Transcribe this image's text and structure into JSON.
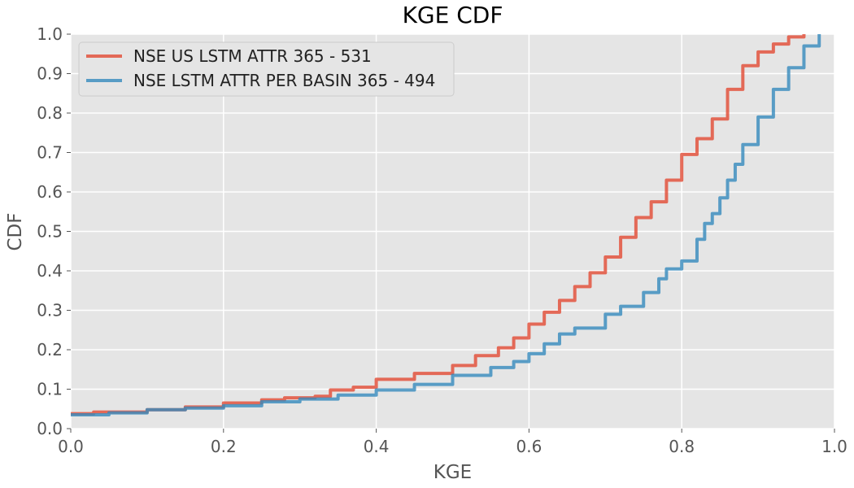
{
  "chart_data": {
    "type": "line",
    "title": "KGE CDF",
    "xlabel": "KGE",
    "ylabel": "CDF",
    "xlim": [
      0,
      1
    ],
    "ylim": [
      0,
      1
    ],
    "grid": true,
    "legend_position": "top-left",
    "x_ticks": [
      "0.0",
      "0.2",
      "0.4",
      "0.6",
      "0.8",
      "1.0"
    ],
    "y_ticks": [
      "0.0",
      "0.1",
      "0.2",
      "0.3",
      "0.4",
      "0.5",
      "0.6",
      "0.7",
      "0.8",
      "0.9",
      "1.0"
    ],
    "series": [
      {
        "name": "NSE US LSTM ATTR 365 - 531",
        "color": "#e24a33",
        "points": [
          [
            0.0,
            0.038
          ],
          [
            0.03,
            0.042
          ],
          [
            0.1,
            0.048
          ],
          [
            0.15,
            0.055
          ],
          [
            0.2,
            0.065
          ],
          [
            0.25,
            0.073
          ],
          [
            0.28,
            0.078
          ],
          [
            0.32,
            0.082
          ],
          [
            0.34,
            0.098
          ],
          [
            0.37,
            0.105
          ],
          [
            0.4,
            0.125
          ],
          [
            0.45,
            0.14
          ],
          [
            0.5,
            0.16
          ],
          [
            0.53,
            0.185
          ],
          [
            0.56,
            0.205
          ],
          [
            0.58,
            0.23
          ],
          [
            0.6,
            0.265
          ],
          [
            0.62,
            0.295
          ],
          [
            0.64,
            0.325
          ],
          [
            0.66,
            0.36
          ],
          [
            0.68,
            0.395
          ],
          [
            0.7,
            0.435
          ],
          [
            0.72,
            0.485
          ],
          [
            0.74,
            0.535
          ],
          [
            0.76,
            0.575
          ],
          [
            0.78,
            0.63
          ],
          [
            0.8,
            0.695
          ],
          [
            0.82,
            0.735
          ],
          [
            0.84,
            0.785
          ],
          [
            0.86,
            0.86
          ],
          [
            0.88,
            0.92
          ],
          [
            0.9,
            0.955
          ],
          [
            0.92,
            0.975
          ],
          [
            0.94,
            0.993
          ],
          [
            0.96,
            1.0
          ]
        ]
      },
      {
        "name": "NSE LSTM ATTR PER BASIN 365 - 494",
        "color": "#348abd",
        "points": [
          [
            0.0,
            0.035
          ],
          [
            0.05,
            0.04
          ],
          [
            0.1,
            0.048
          ],
          [
            0.15,
            0.052
          ],
          [
            0.2,
            0.058
          ],
          [
            0.25,
            0.068
          ],
          [
            0.3,
            0.075
          ],
          [
            0.35,
            0.085
          ],
          [
            0.4,
            0.098
          ],
          [
            0.45,
            0.112
          ],
          [
            0.5,
            0.135
          ],
          [
            0.55,
            0.155
          ],
          [
            0.58,
            0.17
          ],
          [
            0.6,
            0.19
          ],
          [
            0.62,
            0.215
          ],
          [
            0.64,
            0.24
          ],
          [
            0.66,
            0.255
          ],
          [
            0.7,
            0.29
          ],
          [
            0.72,
            0.31
          ],
          [
            0.75,
            0.345
          ],
          [
            0.77,
            0.38
          ],
          [
            0.78,
            0.405
          ],
          [
            0.8,
            0.425
          ],
          [
            0.82,
            0.48
          ],
          [
            0.83,
            0.52
          ],
          [
            0.84,
            0.545
          ],
          [
            0.85,
            0.585
          ],
          [
            0.86,
            0.63
          ],
          [
            0.87,
            0.67
          ],
          [
            0.88,
            0.72
          ],
          [
            0.9,
            0.79
          ],
          [
            0.92,
            0.86
          ],
          [
            0.94,
            0.915
          ],
          [
            0.96,
            0.97
          ],
          [
            0.98,
            1.0
          ]
        ]
      }
    ]
  }
}
